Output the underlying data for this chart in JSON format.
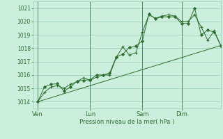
{
  "bg_color": "#cceedd",
  "grid_color": "#99ccbb",
  "line_color": "#2d6e2d",
  "marker_color": "#2d6e2d",
  "xlabel": "Pression niveau de la mer( hPa )",
  "ylim": [
    1013.5,
    1021.5
  ],
  "yticks": [
    1014,
    1015,
    1016,
    1017,
    1018,
    1019,
    1020,
    1021
  ],
  "xtick_labels": [
    "Ven",
    "Lun",
    "Sam",
    "Dim"
  ],
  "xtick_positions": [
    0,
    24,
    48,
    66
  ],
  "xlim": [
    -2,
    84
  ],
  "series1_x": [
    0,
    3,
    6,
    9,
    12,
    15,
    18,
    21,
    24,
    27,
    30,
    33,
    36,
    39,
    42,
    45,
    48,
    51,
    54,
    57,
    60,
    63,
    66,
    69,
    72,
    75,
    78,
    81,
    84
  ],
  "series1_y": [
    1014.0,
    1014.7,
    1015.1,
    1015.2,
    1015.0,
    1015.3,
    1015.5,
    1015.8,
    1015.6,
    1015.85,
    1016.0,
    1016.0,
    1017.3,
    1018.1,
    1017.5,
    1017.65,
    1019.2,
    1020.5,
    1020.25,
    1020.4,
    1020.5,
    1020.4,
    1020.0,
    1020.0,
    1020.5,
    1019.6,
    1018.6,
    1019.3,
    1018.2
  ],
  "series2_x": [
    0,
    3,
    6,
    9,
    12,
    15,
    18,
    21,
    24,
    27,
    30,
    33,
    36,
    39,
    42,
    45,
    48,
    51,
    54,
    57,
    60,
    63,
    66,
    69,
    72,
    75,
    78,
    81,
    84
  ],
  "series2_y": [
    1014.0,
    1015.1,
    1015.3,
    1015.35,
    1014.8,
    1015.1,
    1015.55,
    1015.6,
    1015.65,
    1016.0,
    1016.0,
    1016.15,
    1017.35,
    1017.55,
    1018.05,
    1018.15,
    1018.55,
    1020.55,
    1020.2,
    1020.35,
    1020.35,
    1020.35,
    1019.85,
    1019.85,
    1021.0,
    1019.0,
    1019.35,
    1019.2,
    1018.2
  ],
  "series3_x": [
    0,
    84
  ],
  "series3_y": [
    1014.0,
    1018.2
  ]
}
